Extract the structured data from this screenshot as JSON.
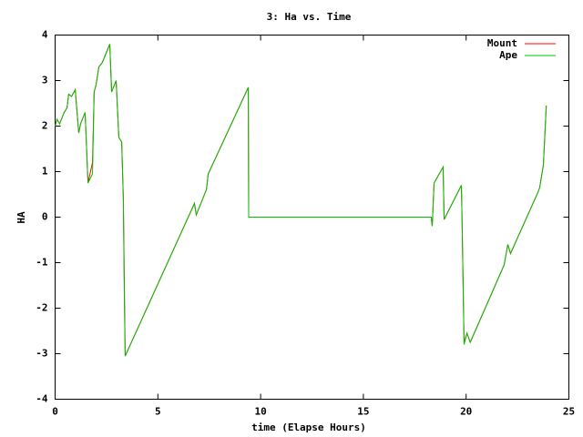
{
  "chart_data": {
    "type": "line",
    "title": "3: Ha vs. Time",
    "x_label": "time (Elapse Hours)",
    "y_label": "HA",
    "x": [
      0,
      0.09,
      0.22,
      0.44,
      0.58,
      0.66,
      0.8,
      0.98,
      1.15,
      1.24,
      1.46,
      1.6,
      1.82,
      1.9,
      1.99,
      2.13,
      2.3,
      2.66,
      2.75,
      2.97,
      3.1,
      3.24,
      3.32,
      3.37,
      3.41,
      6.78,
      6.87,
      7.18,
      7.36,
      7.45,
      9.4,
      9.42,
      18.3,
      18.35,
      18.44,
      18.88,
      18.93,
      19.77,
      19.8,
      19.9,
      20.04,
      20.2,
      21.85,
      22.03,
      22.16,
      23.5,
      23.58,
      23.76,
      23.9
    ],
    "series": [
      {
        "name": "Mount",
        "color": "#ff0000",
        "values": [
          2.0,
          2.15,
          2.05,
          2.3,
          2.4,
          2.7,
          2.65,
          2.8,
          1.85,
          2.05,
          2.3,
          0.75,
          1.2,
          2.75,
          2.9,
          3.3,
          3.4,
          3.8,
          2.75,
          3.0,
          1.75,
          1.65,
          0.4,
          -1.5,
          -3.05,
          0.3,
          0.05,
          0.4,
          0.6,
          0.95,
          2.85,
          0,
          0,
          -0.2,
          0.75,
          1.1,
          -0.05,
          0.7,
          0,
          -2.75,
          -2.55,
          -2.75,
          -1.05,
          -0.6,
          -0.8,
          0.55,
          0.65,
          1.15,
          2.45
        ]
      },
      {
        "name": "Ape",
        "color": "#00c000",
        "values": [
          2.0,
          2.15,
          2.05,
          2.3,
          2.4,
          2.7,
          2.65,
          2.8,
          1.85,
          2.05,
          2.3,
          0.75,
          0.95,
          2.75,
          2.9,
          3.3,
          3.4,
          3.8,
          2.75,
          3.0,
          1.75,
          1.65,
          0.4,
          -1.85,
          -3.05,
          0.3,
          0.05,
          0.4,
          0.6,
          0.95,
          2.85,
          0,
          0,
          -0.2,
          0.75,
          1.1,
          -0.05,
          0.7,
          0,
          -2.8,
          -2.55,
          -2.75,
          -1.05,
          -0.6,
          -0.8,
          0.55,
          0.65,
          1.15,
          2.45
        ]
      }
    ],
    "xlim": [
      0,
      25
    ],
    "xticks": [
      0,
      5,
      10,
      15,
      20,
      25
    ],
    "ylim": [
      -4,
      4
    ],
    "yticks": [
      -4,
      -3,
      -2,
      -1,
      0,
      1,
      2,
      3,
      4
    ],
    "legend": "top-right"
  }
}
